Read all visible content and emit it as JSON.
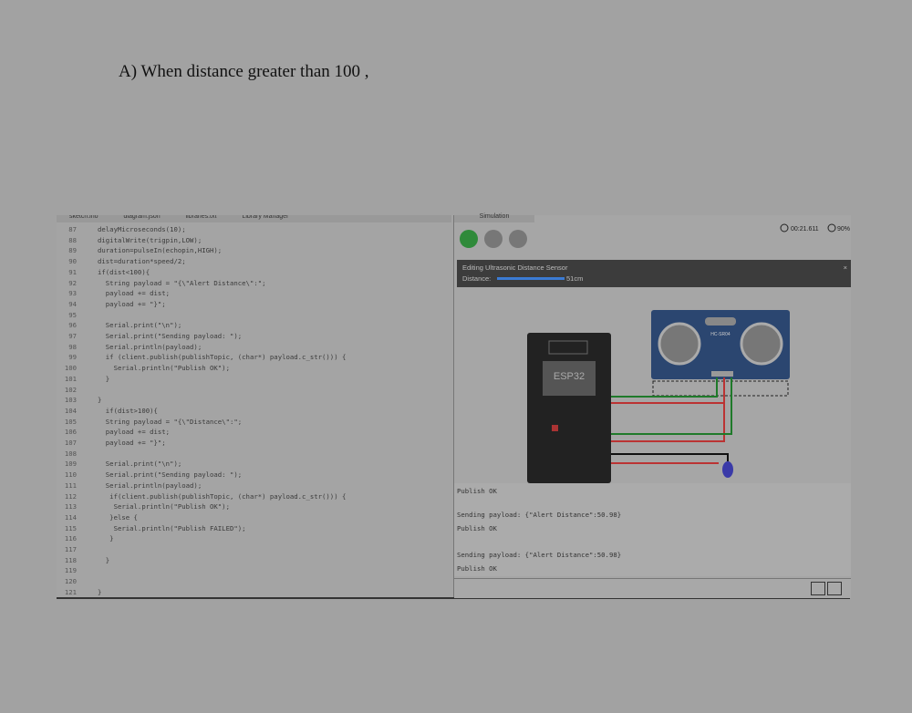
{
  "heading": "A) When distance greater than 100 ,",
  "editor": {
    "tabs": [
      "sketch.ino",
      "diagram.json",
      "libraries.txt",
      "Library Manager"
    ],
    "lines": [
      {
        "num": 87,
        "code": "delayMicroseconds(10);"
      },
      {
        "num": 88,
        "code": "digitalWrite(trigpin,LOW);"
      },
      {
        "num": 89,
        "code": "duration=pulseIn(echopin,HIGH);"
      },
      {
        "num": 90,
        "code": "dist=duration*speed/2;"
      },
      {
        "num": 91,
        "code": "if(dist<100){"
      },
      {
        "num": 92,
        "code": "  String payload = \"{\\\"Alert Distance\\\":\";"
      },
      {
        "num": 93,
        "code": "  payload += dist;"
      },
      {
        "num": 94,
        "code": "  payload += \"}\";"
      },
      {
        "num": 95
      },
      {
        "num": 96,
        "code": "  Serial.print(\"\\n\");"
      },
      {
        "num": 97,
        "code": "  Serial.print(\"Sending payload: \");"
      },
      {
        "num": 98,
        "code": "  Serial.println(payload);"
      },
      {
        "num": 99,
        "code": "  if (client.publish(publishTopic, (char*) payload.c_str())) {"
      },
      {
        "num": 100,
        "code": "    Serial.println(\"Publish OK\");"
      },
      {
        "num": 101,
        "code": "  }"
      },
      {
        "num": 102
      },
      {
        "num": 103,
        "code": "}"
      },
      {
        "num": 104,
        "code": "  if(dist>100){"
      },
      {
        "num": 105,
        "code": "  String payload = \"{\\\"Distance\\\":\";"
      },
      {
        "num": 106,
        "code": "  payload += dist;"
      },
      {
        "num": 107,
        "code": "  payload += \"}\";"
      },
      {
        "num": 108
      },
      {
        "num": 109,
        "code": "  Serial.print(\"\\n\");"
      },
      {
        "num": 110,
        "code": "  Serial.print(\"Sending payload: \");"
      },
      {
        "num": 111,
        "code": "  Serial.println(payload);"
      },
      {
        "num": 112,
        "code": "   if(client.publish(publishTopic, (char*) payload.c_str())) {"
      },
      {
        "num": 113,
        "code": "    Serial.println(\"Publish OK\");"
      },
      {
        "num": 114,
        "code": "   }else {"
      },
      {
        "num": 115,
        "code": "    Serial.println(\"Publish FAILED\");"
      },
      {
        "num": 116,
        "code": "   }"
      },
      {
        "num": 117
      },
      {
        "num": 118,
        "code": "  }"
      },
      {
        "num": 119
      },
      {
        "num": 120
      },
      {
        "num": 121,
        "code": "}"
      }
    ]
  },
  "simulation": {
    "tab": "Simulation",
    "timer": "00:21.611",
    "speed": "90%",
    "panel_title": "Editing Ultrasonic Distance Sensor",
    "distance_label": "Distance:",
    "distance_value": "51cm",
    "chip": "ESP32",
    "sensor": "HC-SR04",
    "console": [
      "Publish OK",
      "Sending payload: {\"Alert Distance\":50.98}",
      "Publish OK",
      "Sending payload: {\"Alert Distance\":50.98}",
      "Publish OK"
    ]
  }
}
